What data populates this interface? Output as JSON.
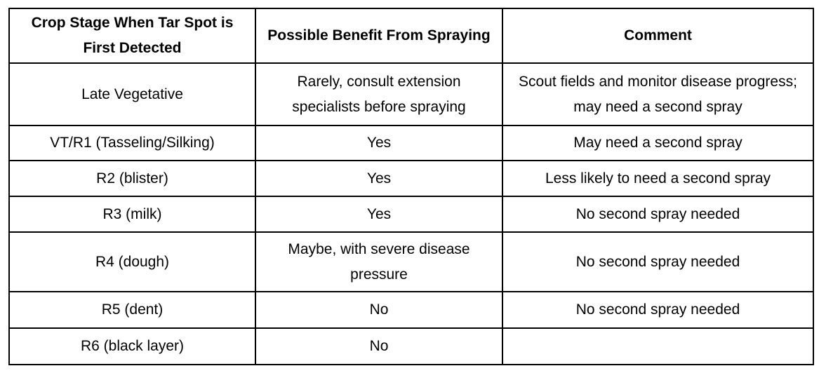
{
  "table": {
    "headers": [
      "Crop Stage When Tar Spot is First Detected",
      "Possible Benefit From Spraying",
      "Comment"
    ],
    "rows": [
      [
        "Late Vegetative",
        "Rarely, consult extension specialists before spraying",
        "Scout fields and monitor disease progress; may need a second spray"
      ],
      [
        "VT/R1 (Tasseling/Silking)",
        "Yes",
        "May need a second spray"
      ],
      [
        "R2 (blister)",
        "Yes",
        "Less likely to need a second spray"
      ],
      [
        "R3 (milk)",
        "Yes",
        "No second spray needed"
      ],
      [
        "R4 (dough)",
        "Maybe, with severe disease pressure",
        "No second spray needed"
      ],
      [
        "R5 (dent)",
        "No",
        "No second spray needed"
      ],
      [
        "R6 (black layer)",
        "No"
      ]
    ]
  }
}
